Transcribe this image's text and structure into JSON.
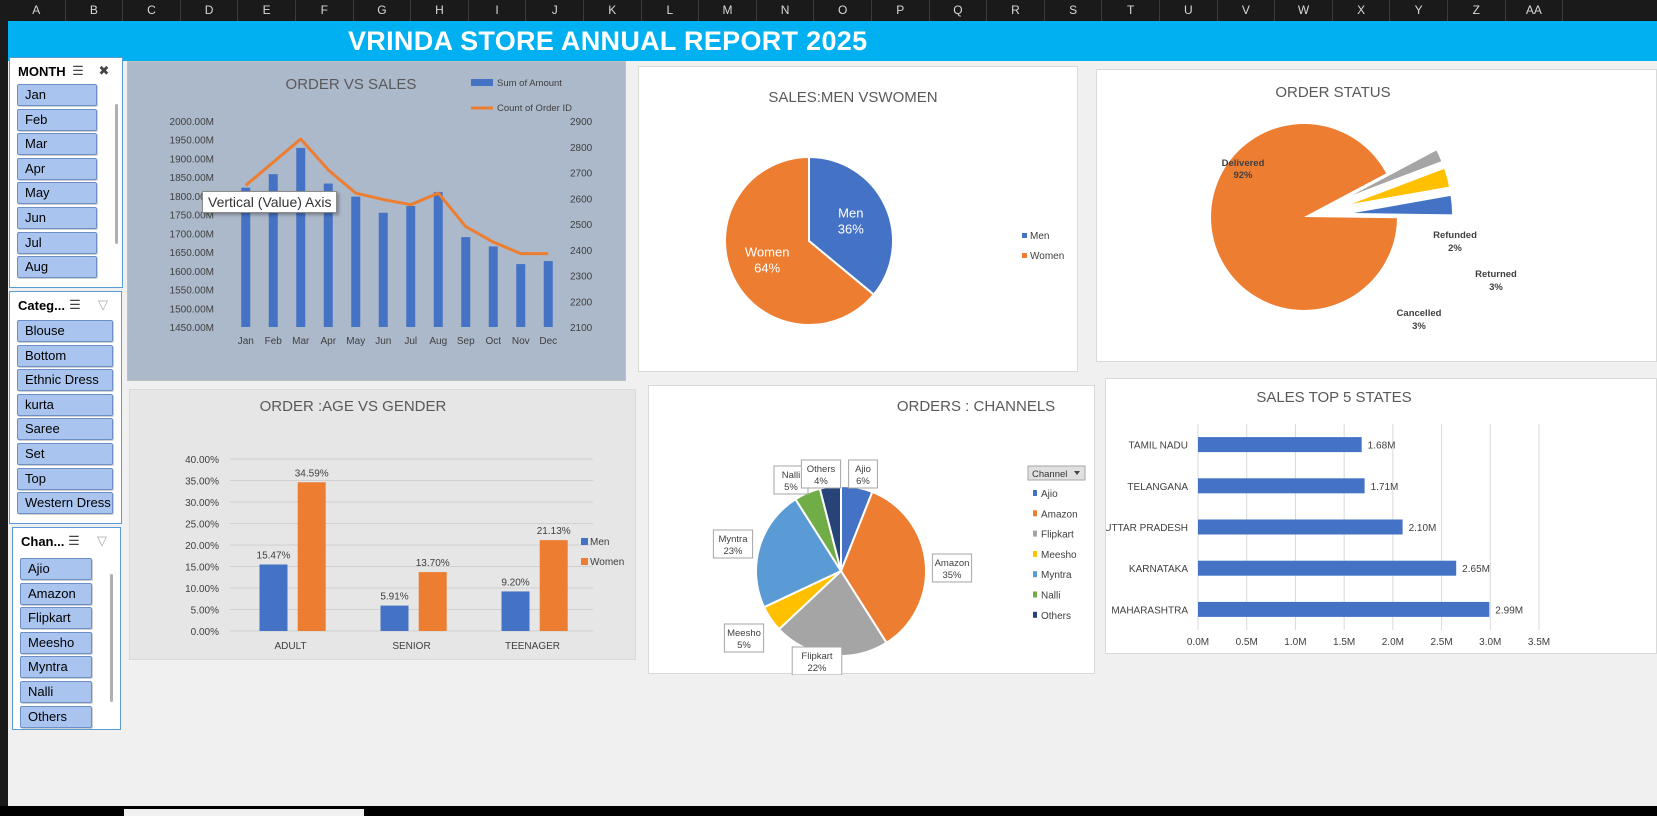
{
  "columns": [
    "A",
    "B",
    "C",
    "D",
    "E",
    "F",
    "G",
    "H",
    "I",
    "J",
    "K",
    "L",
    "M",
    "N",
    "O",
    "P",
    "Q",
    "R",
    "S",
    "T",
    "U",
    "V",
    "W",
    "X",
    "Y",
    "Z",
    "AA"
  ],
  "banner": {
    "title": "VRINDA STORE ANNUAL REPORT 2025",
    "color": "#00b0f0"
  },
  "slicers": {
    "month": {
      "header": "MONTH",
      "items": [
        "Jan",
        "Feb",
        "Mar",
        "Apr",
        "May",
        "Jun",
        "Jul",
        "Aug"
      ]
    },
    "category": {
      "header": "Categ...",
      "items": [
        "Blouse",
        "Bottom",
        "Ethnic Dress",
        "kurta",
        "Saree",
        "Set",
        "Top",
        "Western Dress"
      ]
    },
    "channel": {
      "header": "Chan...",
      "items": [
        "Ajio",
        "Amazon",
        "Flipkart",
        "Meesho",
        "Myntra",
        "Nalli",
        "Others"
      ]
    }
  },
  "tooltip": "Vertical (Value) Axis",
  "chart_data": [
    {
      "id": "order_vs_sales",
      "type": "bar+line",
      "title": "ORDER VS SALES",
      "categories": [
        "Jan",
        "Feb",
        "Mar",
        "Apr",
        "May",
        "Jun",
        "Jul",
        "Aug",
        "Sep",
        "Oct",
        "Nov",
        "Dec"
      ],
      "series": [
        {
          "name": "Sum of Amount",
          "type": "bar",
          "axis": "left",
          "color": "#4472c4",
          "values": [
            1822,
            1858,
            1928,
            1833,
            1798,
            1755,
            1773,
            1810,
            1690,
            1665,
            1618,
            1626
          ]
        },
        {
          "name": "Count of Order ID",
          "type": "line",
          "axis": "right",
          "color": "#ed7d31",
          "values": [
            2650,
            2740,
            2830,
            2710,
            2620,
            2595,
            2575,
            2620,
            2490,
            2430,
            2385,
            2385
          ]
        }
      ],
      "left_ticks": [
        "2000.00M",
        "1950.00M",
        "1900.00M",
        "1850.00M",
        "1800.00M",
        "1750.00M",
        "1700.00M",
        "1650.00M",
        "1600.00M",
        "1550.00M",
        "1500.00M",
        "1450.00M"
      ],
      "right_ticks": [
        "2900",
        "2800",
        "2700",
        "2600",
        "2500",
        "2400",
        "2300",
        "2200",
        "2100"
      ],
      "ylim_left": [
        1450,
        2000
      ],
      "ylim_right": [
        2100,
        2900
      ],
      "legend": "top-right",
      "background": "#acb9ca"
    },
    {
      "id": "sales_men_women",
      "type": "pie",
      "title": "SALES:MEN VSWOMEN",
      "slices": [
        {
          "name": "Men",
          "value": 36,
          "label": "36%",
          "color": "#4472c4"
        },
        {
          "name": "Women",
          "value": 64,
          "label": "64%",
          "color": "#ed7d31"
        }
      ],
      "legend": "right"
    },
    {
      "id": "order_status",
      "type": "pie",
      "title": "ORDER STATUS",
      "slices": [
        {
          "name": "Delivered",
          "value": 92,
          "label": "92%",
          "color": "#ed7d31"
        },
        {
          "name": "Cancelled",
          "value": 3,
          "label": "3%",
          "color": "#4472c4"
        },
        {
          "name": "Returned",
          "value": 3,
          "label": "3%",
          "color": "#ffc000"
        },
        {
          "name": "Refunded",
          "value": 2,
          "label": "2%",
          "color": "#a5a5a5"
        }
      ]
    },
    {
      "id": "order_age_gender",
      "type": "bar",
      "title": "ORDER :AGE VS GENDER",
      "categories": [
        "ADULT",
        "SENIOR",
        "TEENAGER"
      ],
      "series": [
        {
          "name": "Men",
          "color": "#4472c4",
          "values": [
            15.47,
            5.91,
            9.2
          ],
          "labels": [
            "15.47%",
            "5.91%",
            "9.20%"
          ]
        },
        {
          "name": "Women",
          "color": "#ed7d31",
          "values": [
            34.59,
            13.7,
            21.13
          ],
          "labels": [
            "34.59%",
            "13.70%",
            "21.13%"
          ]
        }
      ],
      "ticks": [
        "40.00%",
        "35.00%",
        "30.00%",
        "25.00%",
        "20.00%",
        "15.00%",
        "10.00%",
        "5.00%",
        "0.00%"
      ],
      "ylim": [
        0,
        40
      ],
      "legend": "right",
      "background": "#e7e6e6"
    },
    {
      "id": "orders_channels",
      "type": "pie",
      "title": "ORDERS : CHANNELS",
      "legend_header": "Channel",
      "slices": [
        {
          "name": "Ajio",
          "value": 6,
          "label": "6%",
          "color": "#4472c4"
        },
        {
          "name": "Amazon",
          "value": 35,
          "label": "35%",
          "color": "#ed7d31"
        },
        {
          "name": "Flipkart",
          "value": 22,
          "label": "22%",
          "color": "#a5a5a5"
        },
        {
          "name": "Meesho",
          "value": 5,
          "label": "5%",
          "color": "#ffc000"
        },
        {
          "name": "Myntra",
          "value": 23,
          "label": "23%",
          "color": "#5b9bd5"
        },
        {
          "name": "Nalli",
          "value": 5,
          "label": "5%",
          "color": "#70ad47"
        },
        {
          "name": "Others",
          "value": 4,
          "label": "4%",
          "color": "#264478"
        }
      ]
    },
    {
      "id": "sales_top5_states",
      "type": "bar",
      "orientation": "horizontal",
      "title": "SALES TOP 5 STATES",
      "categories": [
        "TAMIL NADU",
        "TELANGANA",
        "UTTAR PRADESH",
        "KARNATAKA",
        "MAHARASHTRA"
      ],
      "values": [
        1.68,
        1.71,
        2.1,
        2.65,
        2.99
      ],
      "labels": [
        "1.68M",
        "1.71M",
        "2.10M",
        "2.65M",
        "2.99M"
      ],
      "ticks": [
        "0.0M",
        "0.5M",
        "1.0M",
        "1.5M",
        "2.0M",
        "2.5M",
        "3.0M",
        "3.5M"
      ],
      "xlim": [
        0,
        3.5
      ],
      "color": "#4472c4"
    }
  ]
}
